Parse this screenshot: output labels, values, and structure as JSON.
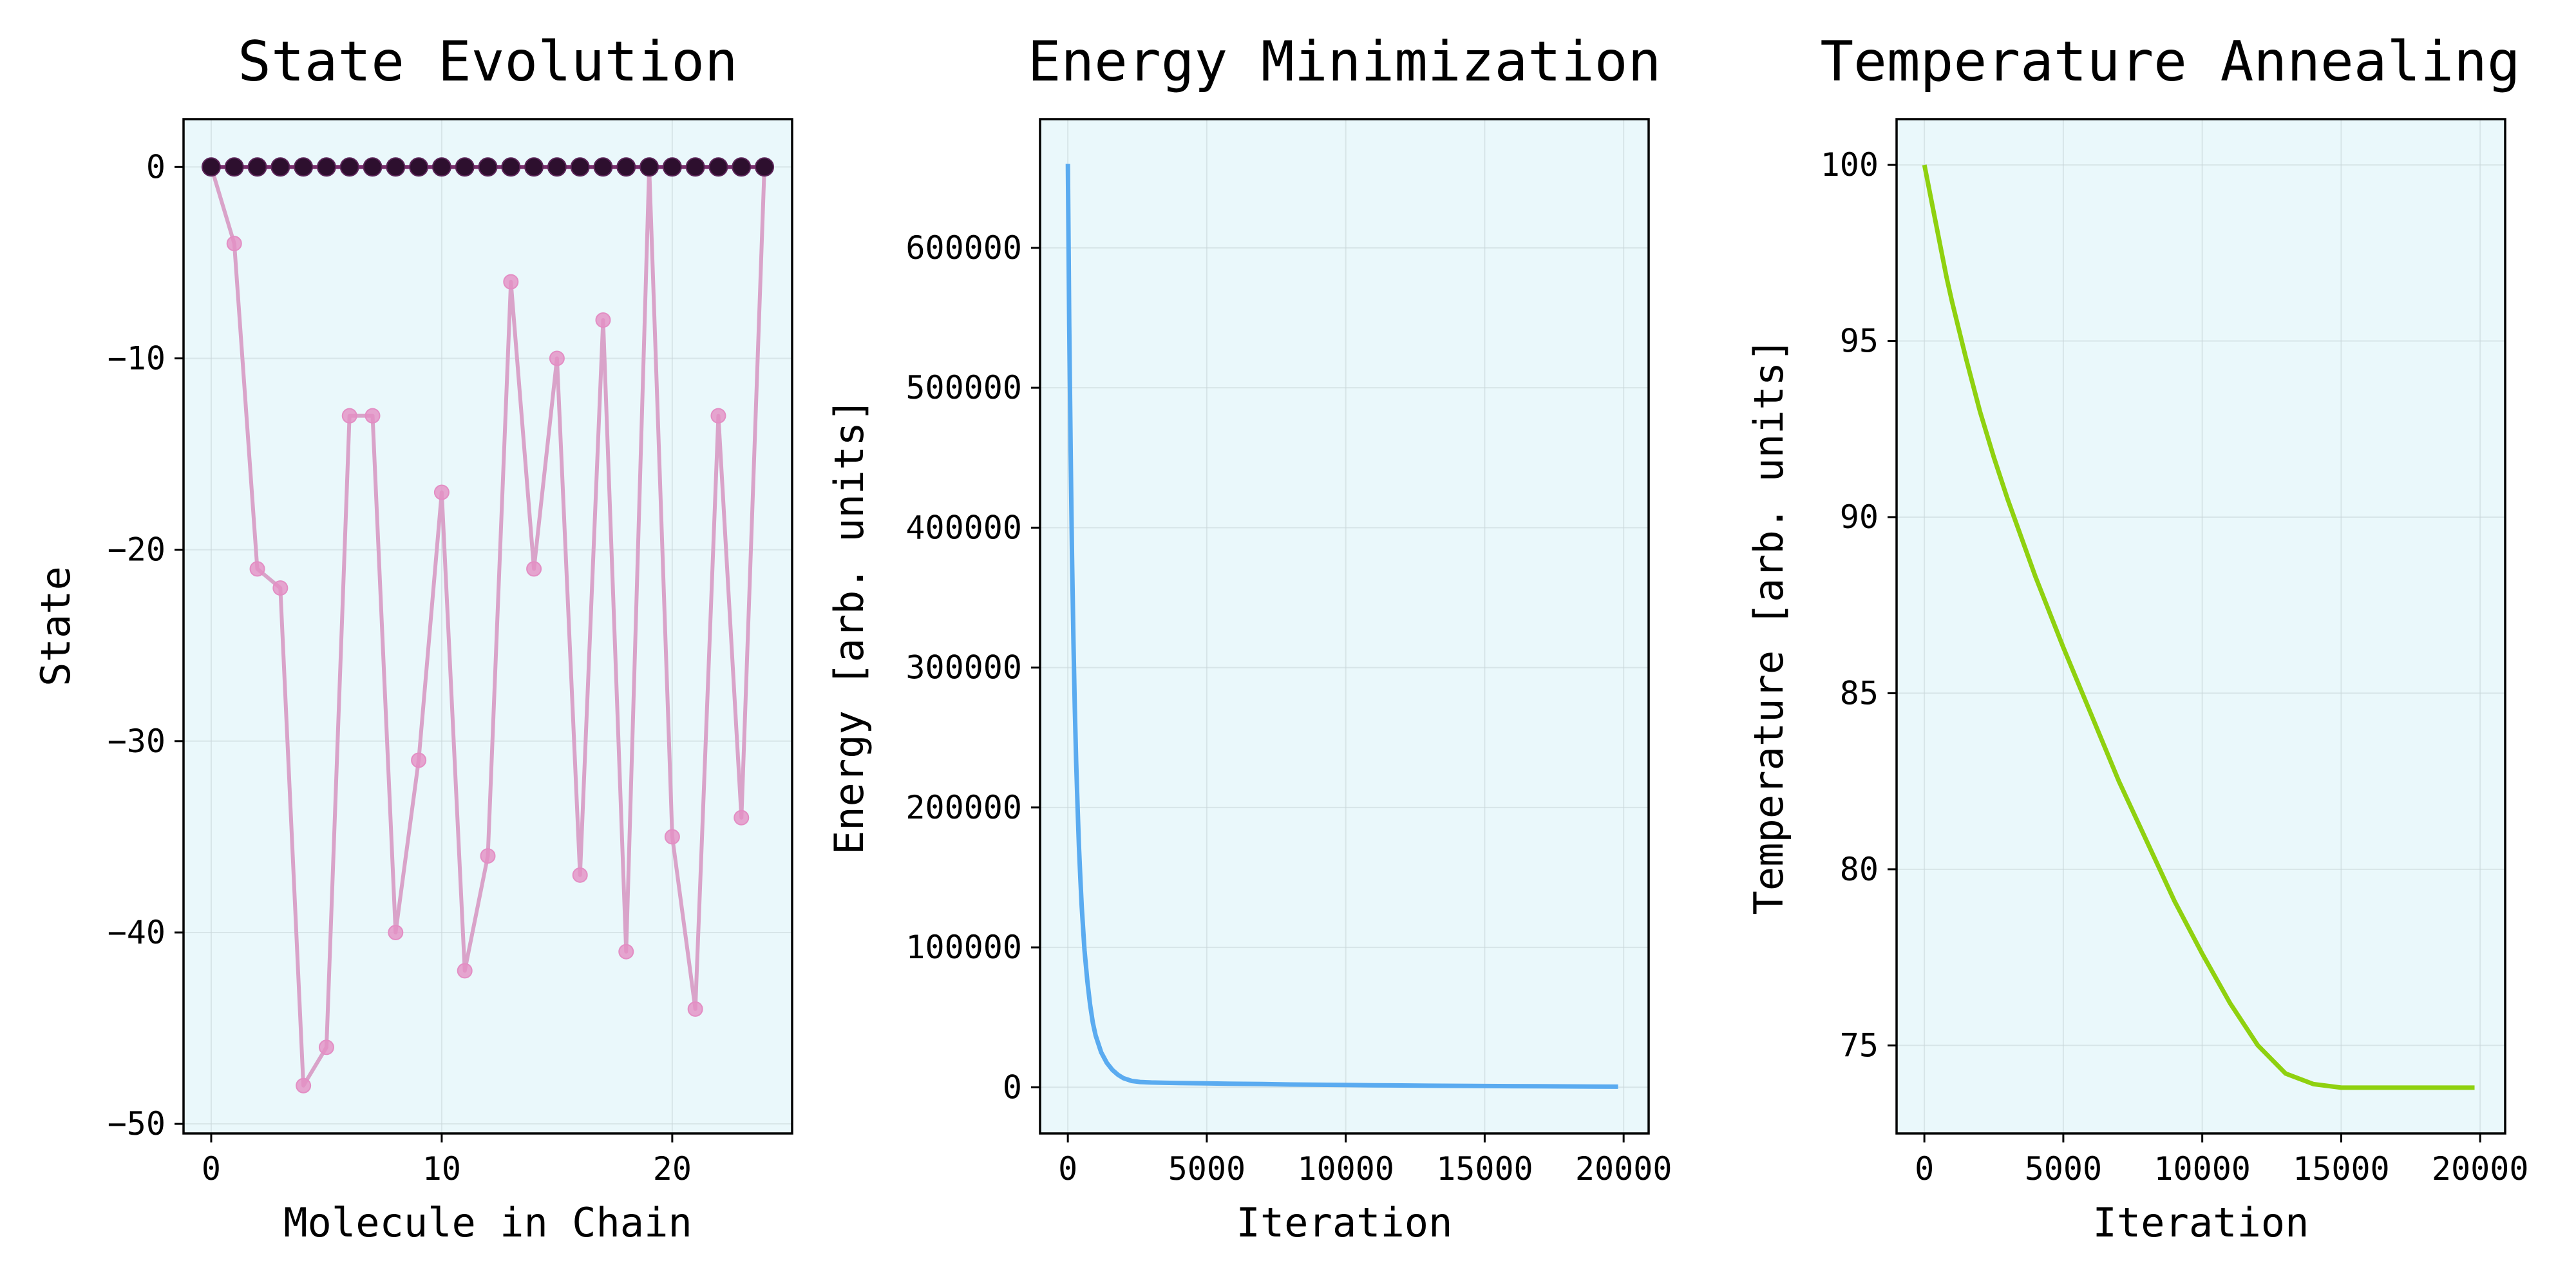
{
  "chart_data": [
    {
      "type": "line",
      "title": "State Evolution",
      "xlabel": "Molecule in Chain",
      "ylabel": "State",
      "xlim": [
        -1.2,
        25.2
      ],
      "ylim": [
        -50.5,
        2.5
      ],
      "xticks": [
        0,
        10,
        20
      ],
      "yticks": [
        0,
        -10,
        -20,
        -30,
        -40,
        -50
      ],
      "xtick_labels": [
        "0",
        "10",
        "20"
      ],
      "ytick_labels": [
        "0",
        "−10",
        "−20",
        "−30",
        "−40",
        "−50"
      ],
      "grid": true,
      "series": [
        {
          "style": "line+markers",
          "color": "#d9a3c9",
          "marker_color": "#e38ec4",
          "x": [
            0,
            1,
            2,
            3,
            4,
            5,
            6,
            7,
            8,
            9,
            10,
            11,
            12,
            13,
            14,
            15,
            16,
            17,
            18,
            19,
            20,
            21,
            22,
            23,
            24
          ],
          "values": [
            0,
            -4,
            -21,
            -22,
            -48,
            -46,
            -13,
            -13,
            -40,
            -31,
            -17,
            -42,
            -36,
            -6,
            -21,
            -10,
            -37,
            -8,
            -41,
            0,
            -35,
            -44,
            -13,
            -34,
            0
          ]
        },
        {
          "style": "line+markers",
          "color": "#7b2e6e",
          "marker_color": "#2d0f2e",
          "x": [
            0,
            1,
            2,
            3,
            4,
            5,
            6,
            7,
            8,
            9,
            10,
            11,
            12,
            13,
            14,
            15,
            16,
            17,
            18,
            19,
            20,
            21,
            22,
            23,
            24
          ],
          "values": [
            0,
            0,
            0,
            0,
            0,
            0,
            0,
            0,
            0,
            0,
            0,
            0,
            0,
            0,
            0,
            0,
            0,
            0,
            0,
            0,
            0,
            0,
            0,
            0,
            0
          ]
        }
      ]
    },
    {
      "type": "line",
      "title": "Energy Minimization",
      "xlabel": "Iteration",
      "ylabel": "Energy [arb. units]",
      "xlim": [
        -1000,
        20900
      ],
      "ylim": [
        -33000,
        692000
      ],
      "xticks": [
        0,
        5000,
        10000,
        15000,
        20000
      ],
      "yticks": [
        0,
        100000,
        200000,
        300000,
        400000,
        500000,
        600000
      ],
      "xtick_labels": [
        "0",
        "5000",
        "10000",
        "15000",
        "20000"
      ],
      "ytick_labels": [
        "0",
        "100000",
        "200000",
        "300000",
        "400000",
        "500000",
        "600000"
      ],
      "grid": true,
      "series": [
        {
          "style": "line",
          "color": "#5aabf0",
          "x": [
            0,
            50,
            100,
            150,
            200,
            250,
            300,
            350,
            400,
            450,
            500,
            600,
            700,
            800,
            900,
            1000,
            1200,
            1400,
            1600,
            1800,
            2000,
            2300,
            2600,
            3000,
            3500,
            4000,
            5000,
            6000,
            7000,
            8000,
            9000,
            10000,
            11000,
            12000,
            13000,
            14000,
            15000,
            16000,
            17000,
            18000,
            19000,
            19800
          ],
          "values": [
            660000,
            545000,
            455000,
            380000,
            320000,
            272000,
            232000,
            200000,
            172000,
            149000,
            129000,
            98000,
            76000,
            59000,
            46000,
            37000,
            25000,
            17500,
            12500,
            9000,
            6500,
            4500,
            3800,
            3400,
            3200,
            3000,
            2800,
            2500,
            2300,
            2000,
            1800,
            1600,
            1400,
            1300,
            1100,
            1000,
            900,
            800,
            700,
            600,
            500,
            400
          ]
        }
      ]
    },
    {
      "type": "line",
      "title": "Temperature Annealing",
      "xlabel": "Iteration",
      "ylabel": "Temperature [arb. units]",
      "xlim": [
        -1000,
        20900
      ],
      "ylim": [
        72.5,
        101.3
      ],
      "xticks": [
        0,
        5000,
        10000,
        15000,
        20000
      ],
      "yticks": [
        75,
        80,
        85,
        90,
        95,
        100
      ],
      "xtick_labels": [
        "0",
        "5000",
        "10000",
        "15000",
        "20000"
      ],
      "ytick_labels": [
        "75",
        "80",
        "85",
        "90",
        "95",
        "100"
      ],
      "grid": true,
      "series": [
        {
          "style": "line",
          "color": "#8fd10f",
          "x": [
            0,
            200,
            400,
            600,
            800,
            1000,
            1500,
            2000,
            2500,
            3000,
            3500,
            4000,
            5000,
            6000,
            7000,
            8000,
            9000,
            10000,
            11000,
            12000,
            13000,
            14000,
            15000,
            16000,
            17000,
            17500,
            18000,
            18500,
            19000,
            19500,
            19800
          ],
          "values": [
            100,
            99.2,
            98.4,
            97.6,
            96.8,
            96.1,
            94.5,
            93.0,
            91.7,
            90.5,
            89.4,
            88.3,
            86.3,
            84.4,
            82.5,
            80.8,
            79.1,
            77.6,
            76.2,
            75.0,
            74.2,
            73.9,
            73.8,
            73.8,
            73.8,
            73.8,
            73.8,
            73.8,
            73.8,
            73.8,
            73.8
          ]
        }
      ]
    }
  ]
}
